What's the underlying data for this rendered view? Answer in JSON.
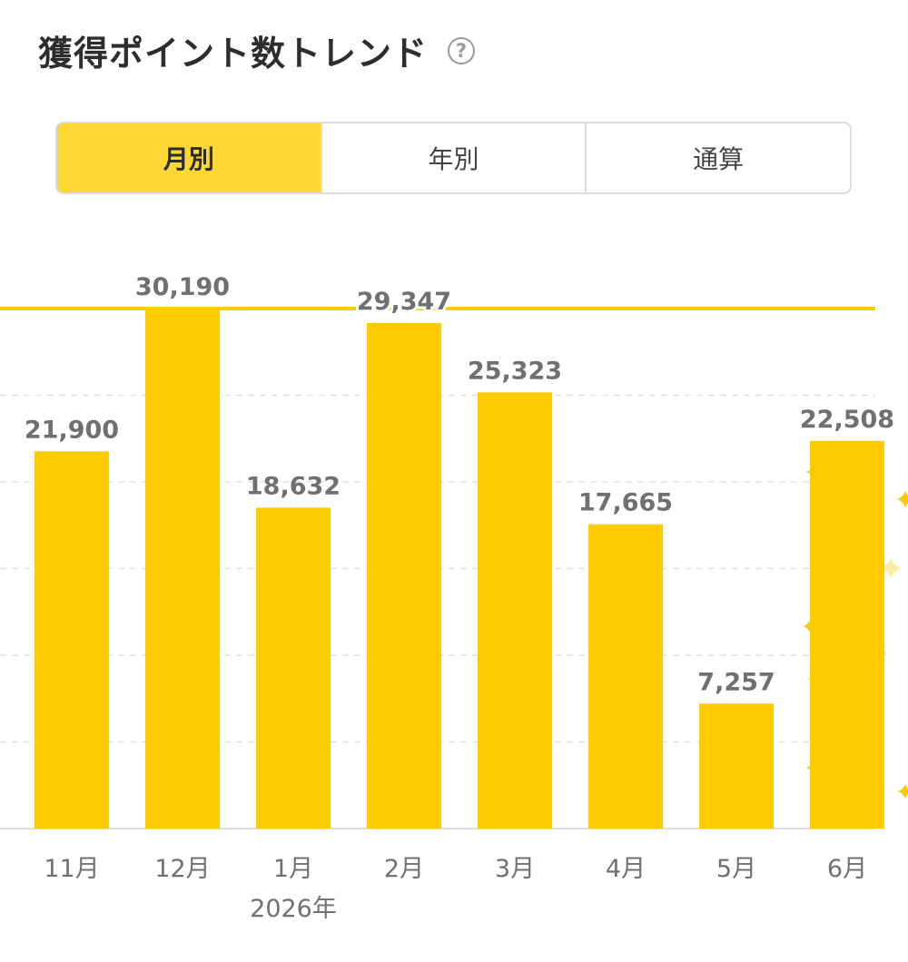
{
  "header": {
    "title": "獲得ポイント数トレンド",
    "help_icon": "question-circle-icon"
  },
  "tabs": [
    {
      "label": "月別",
      "active": true
    },
    {
      "label": "年別",
      "active": false
    },
    {
      "label": "通算",
      "active": false
    }
  ],
  "colors": {
    "bar": "#fecb00",
    "accent": "#fdd835",
    "sparkle": "#fecb00",
    "label": "#707070",
    "grid": "#e2e2e2"
  },
  "chart_data": {
    "type": "bar",
    "categories": [
      "11月",
      "12月",
      "1月",
      "2月",
      "3月",
      "4月",
      "5月",
      "6月"
    ],
    "values": [
      21900,
      30190,
      18632,
      29347,
      25323,
      17665,
      7257,
      22508
    ],
    "value_labels": [
      "21,900",
      "30,190",
      "18,632",
      "29,347",
      "25,323",
      "17,665",
      "7,257",
      "22,508"
    ],
    "year_label": {
      "category": "1月",
      "text": "2026年"
    },
    "ylim": [
      0,
      30190
    ],
    "max_line": true,
    "grid": true,
    "highlighted_category": "6月"
  }
}
